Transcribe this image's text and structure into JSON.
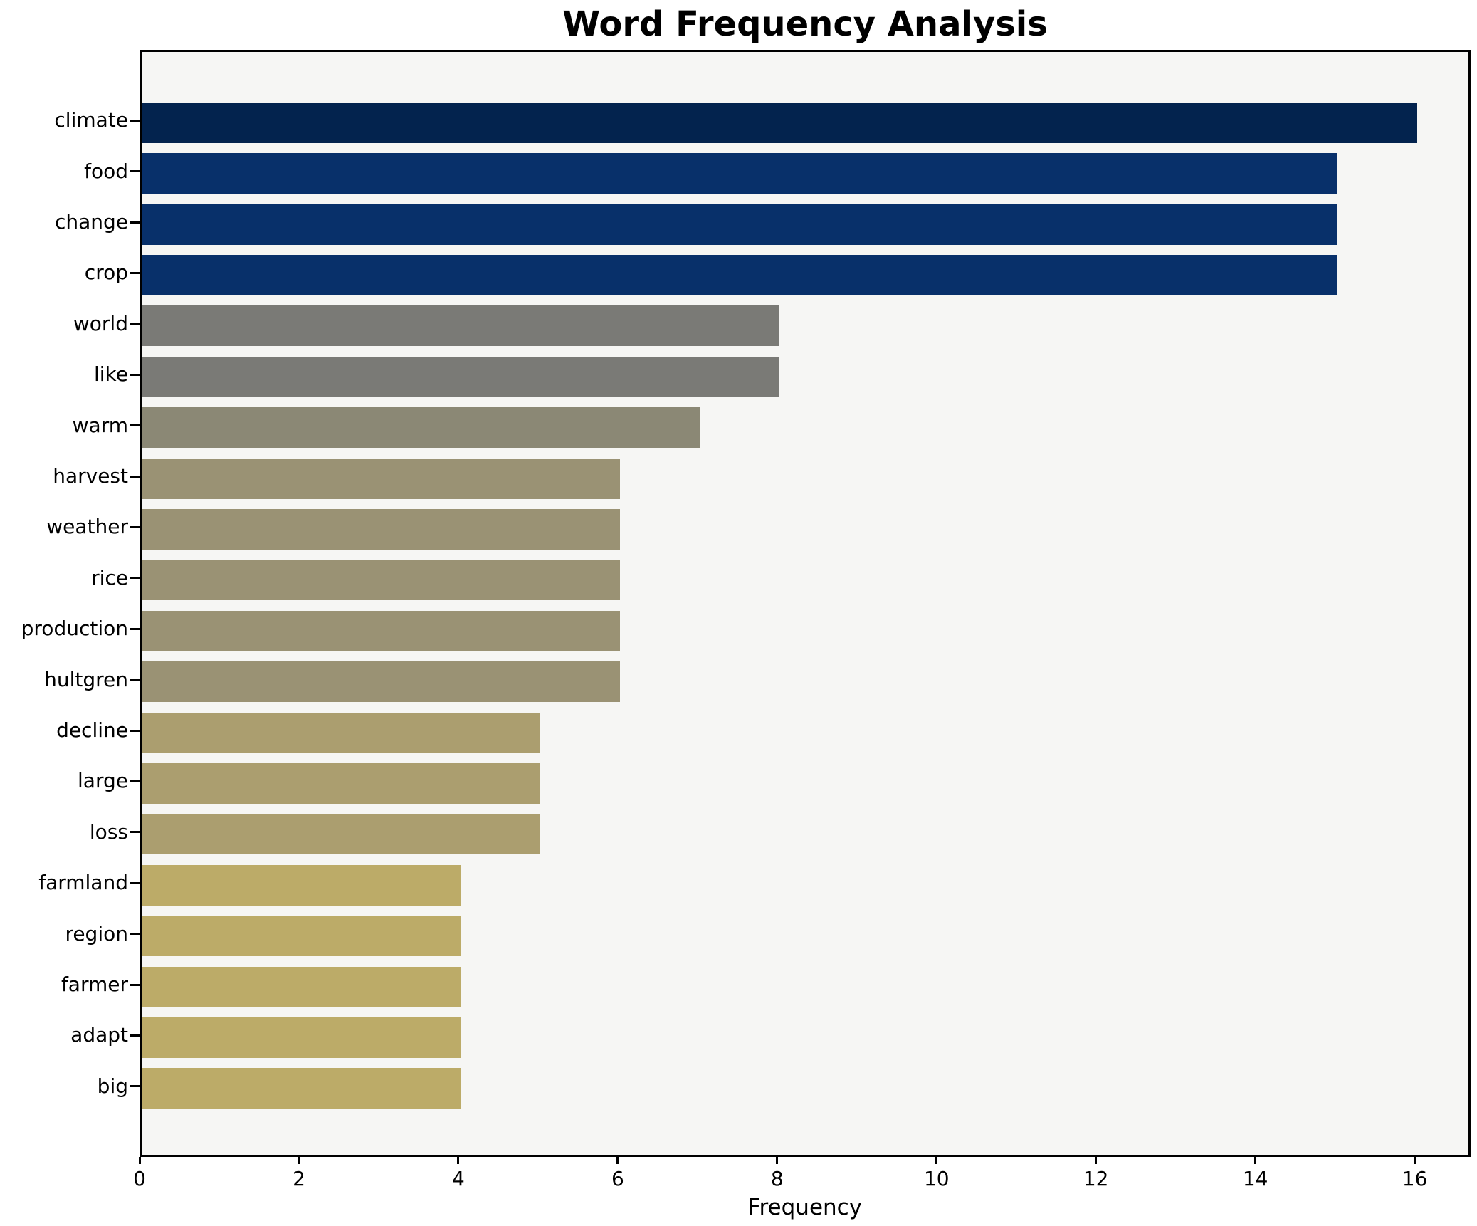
{
  "title": "Word Frequency Analysis",
  "chart_data": {
    "type": "bar",
    "orientation": "horizontal",
    "title": "Word Frequency Analysis",
    "xlabel": "Frequency",
    "ylabel": "",
    "categories": [
      "climate",
      "food",
      "change",
      "crop",
      "world",
      "like",
      "warm",
      "harvest",
      "weather",
      "rice",
      "production",
      "hultgren",
      "decline",
      "large",
      "loss",
      "farmland",
      "region",
      "farmer",
      "adapt",
      "big"
    ],
    "values": [
      16,
      15,
      15,
      15,
      8,
      8,
      7,
      6,
      6,
      6,
      6,
      6,
      5,
      5,
      5,
      4,
      4,
      4,
      4,
      4
    ],
    "bar_colors": [
      "#03234e",
      "#08306a",
      "#08306a",
      "#08306a",
      "#7a7a76",
      "#7a7a76",
      "#8b8875",
      "#9a9274",
      "#9a9274",
      "#9a9274",
      "#9a9274",
      "#9a9274",
      "#ab9e6f",
      "#ab9e6f",
      "#ab9e6f",
      "#bcab68",
      "#bcab68",
      "#bcab68",
      "#bcab68",
      "#bcab68"
    ],
    "x_ticks": [
      0,
      2,
      4,
      6,
      8,
      10,
      12,
      14,
      16
    ],
    "xlim": [
      0,
      16.7
    ],
    "grid": false,
    "legend": false,
    "plot_bg": "#f6f6f4",
    "figure_bg": "#ffffff",
    "spine_color": "#000000"
  }
}
